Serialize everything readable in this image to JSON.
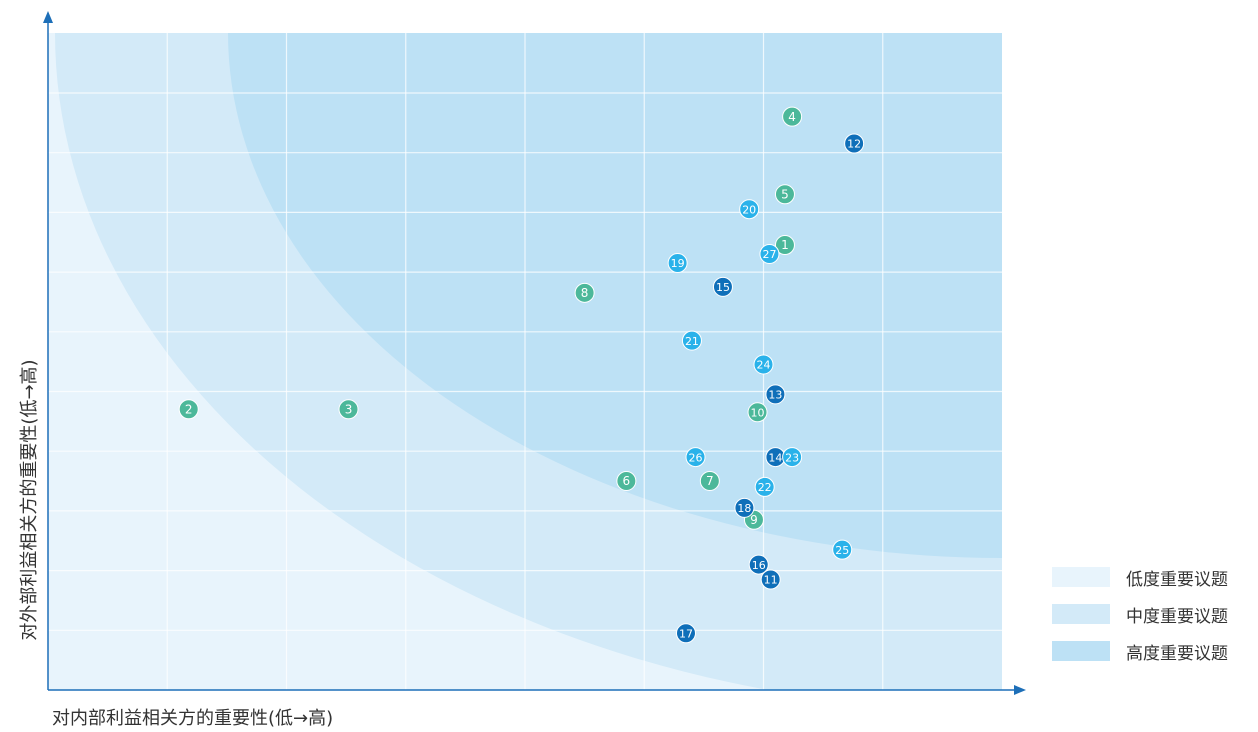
{
  "chart_data": {
    "type": "scatter",
    "xlabel": "对内部利益相关方的重要性(低→高)",
    "ylabel": "对外部利益相关方的重要性(低→高)",
    "xlim": [
      0,
      8
    ],
    "ylim": [
      0,
      11
    ],
    "grid": true,
    "legend_position": "bottom-right",
    "zones": [
      {
        "name": "低度重要议题",
        "color": "#e8f4fc"
      },
      {
        "name": "中度重要议题",
        "color": "#d3eaf8"
      },
      {
        "name": "高度重要议题",
        "color": "#bde1f5"
      }
    ],
    "category_colors": {
      "green": "#4cb89a",
      "cyan": "#2ab2ea",
      "blue": "#0f6fb9"
    },
    "points": [
      {
        "label": "1",
        "x": 6.18,
        "y": 7.45,
        "category": "green"
      },
      {
        "label": "2",
        "x": 1.18,
        "y": 4.7,
        "category": "green"
      },
      {
        "label": "3",
        "x": 2.52,
        "y": 4.7,
        "category": "green"
      },
      {
        "label": "4",
        "x": 6.24,
        "y": 9.6,
        "category": "green"
      },
      {
        "label": "5",
        "x": 6.18,
        "y": 8.3,
        "category": "green"
      },
      {
        "label": "6",
        "x": 4.85,
        "y": 3.5,
        "category": "green"
      },
      {
        "label": "7",
        "x": 5.55,
        "y": 3.5,
        "category": "green"
      },
      {
        "label": "8",
        "x": 4.5,
        "y": 6.65,
        "category": "green"
      },
      {
        "label": "9",
        "x": 5.92,
        "y": 2.85,
        "category": "green"
      },
      {
        "label": "10",
        "x": 5.95,
        "y": 4.65,
        "category": "green"
      },
      {
        "label": "11",
        "x": 6.06,
        "y": 1.85,
        "category": "blue"
      },
      {
        "label": "12",
        "x": 6.76,
        "y": 9.15,
        "category": "blue"
      },
      {
        "label": "13",
        "x": 6.1,
        "y": 4.95,
        "category": "blue"
      },
      {
        "label": "14",
        "x": 6.1,
        "y": 3.9,
        "category": "blue"
      },
      {
        "label": "15",
        "x": 5.66,
        "y": 6.75,
        "category": "blue"
      },
      {
        "label": "16",
        "x": 5.96,
        "y": 2.1,
        "category": "blue"
      },
      {
        "label": "17",
        "x": 5.35,
        "y": 0.95,
        "category": "blue"
      },
      {
        "label": "18",
        "x": 5.84,
        "y": 3.05,
        "category": "blue"
      },
      {
        "label": "19",
        "x": 5.28,
        "y": 7.15,
        "category": "cyan"
      },
      {
        "label": "20",
        "x": 5.88,
        "y": 8.05,
        "category": "cyan"
      },
      {
        "label": "21",
        "x": 5.4,
        "y": 5.85,
        "category": "cyan"
      },
      {
        "label": "22",
        "x": 6.01,
        "y": 3.4,
        "category": "cyan"
      },
      {
        "label": "23",
        "x": 6.24,
        "y": 3.9,
        "category": "cyan"
      },
      {
        "label": "24",
        "x": 6.0,
        "y": 5.45,
        "category": "cyan"
      },
      {
        "label": "25",
        "x": 6.66,
        "y": 2.35,
        "category": "cyan"
      },
      {
        "label": "26",
        "x": 5.43,
        "y": 3.9,
        "category": "cyan"
      },
      {
        "label": "27",
        "x": 6.05,
        "y": 7.3,
        "category": "cyan"
      }
    ]
  }
}
